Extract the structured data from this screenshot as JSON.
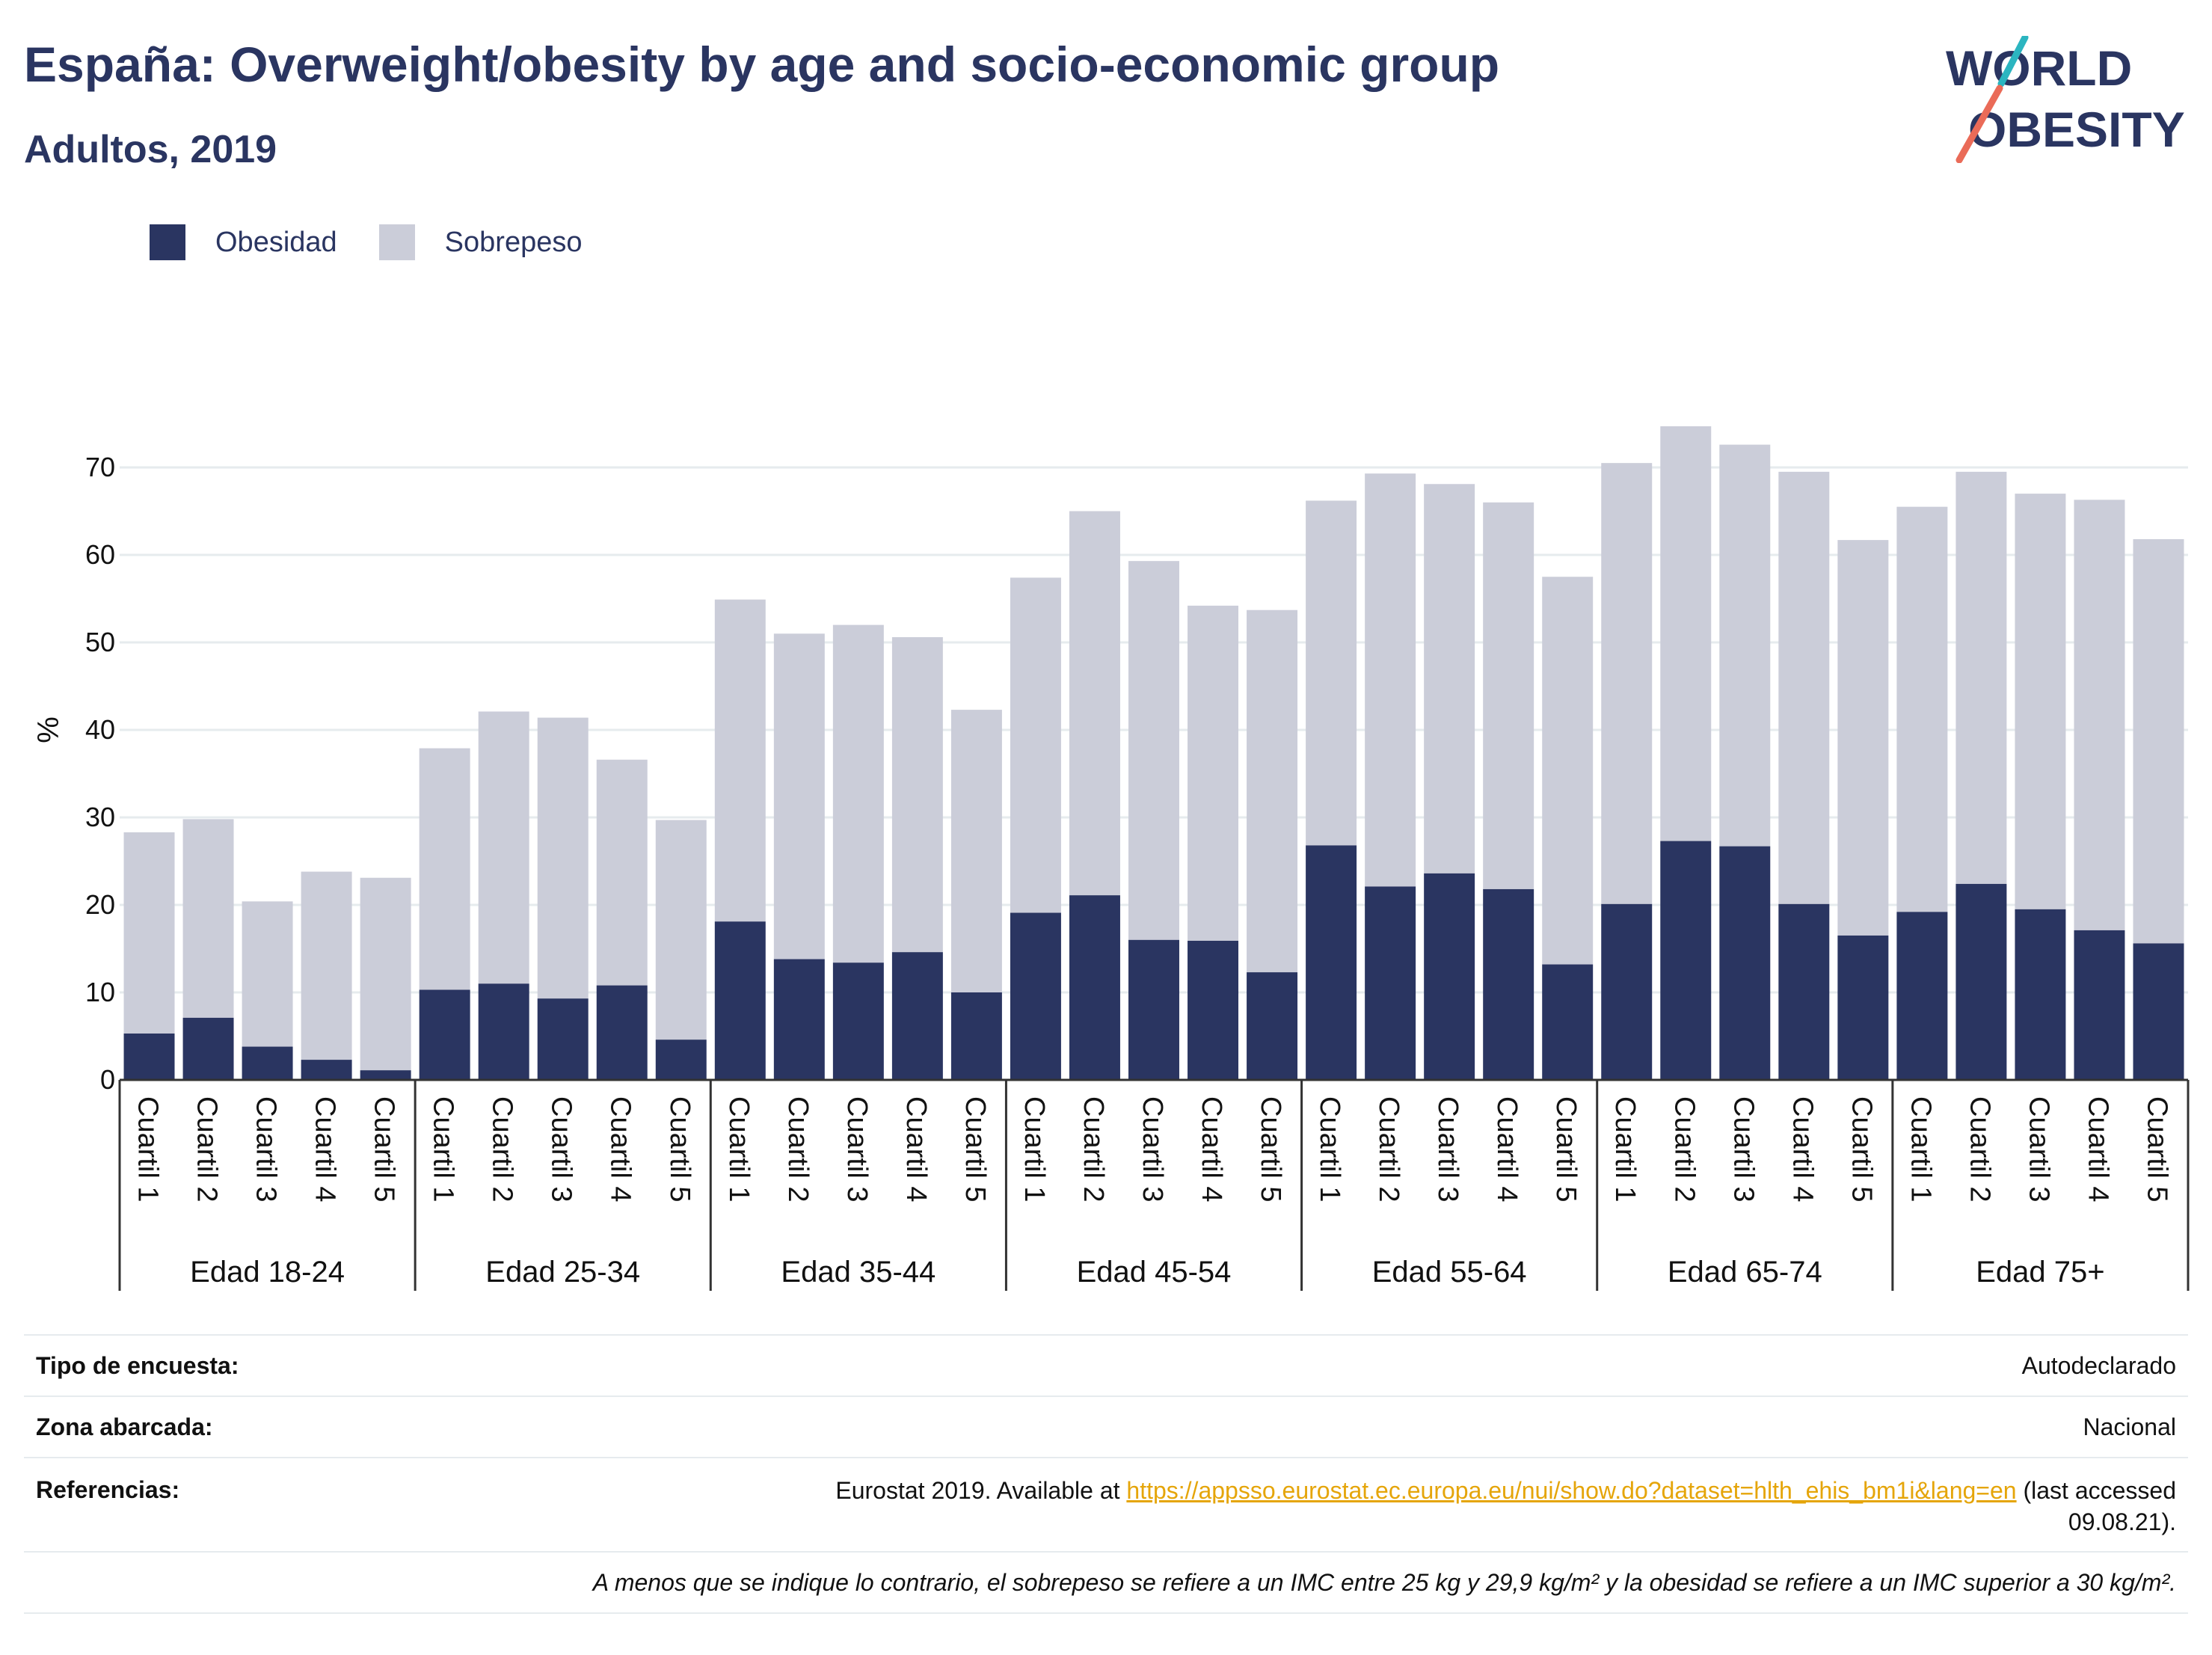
{
  "header": {
    "title": "España: Overweight/obesity by age and socio-economic group",
    "subtitle": "Adultos, 2019"
  },
  "logo": {
    "line1": "WORLD",
    "line2": "OBESITY"
  },
  "colors": {
    "obesidad": "#2a3561",
    "sobrepeso": "#cbcdd9",
    "text": "#2a3561",
    "link": "#e5a50a",
    "grid": "#e6ebee"
  },
  "chart_data": {
    "type": "bar",
    "stacked": true,
    "ylabel": "%",
    "ylim": [
      0,
      80
    ],
    "yticks": [
      0,
      10,
      20,
      30,
      40,
      50,
      60,
      70
    ],
    "grid": true,
    "legend_position": "top-left",
    "groups": [
      "Edad 18-24",
      "Edad 25-34",
      "Edad 35-44",
      "Edad 45-54",
      "Edad 55-64",
      "Edad 65-74",
      "Edad 75+"
    ],
    "categories": [
      "Cuartil 1",
      "Cuartil 2",
      "Cuartil 3",
      "Cuartil 4",
      "Cuartil 5"
    ],
    "series": [
      {
        "name": "Obesidad",
        "values": [
          [
            5.3,
            7.1,
            3.8,
            2.3,
            1.1
          ],
          [
            10.3,
            11.0,
            9.3,
            10.8,
            4.6
          ],
          [
            18.1,
            13.8,
            13.4,
            14.6,
            10.0
          ],
          [
            19.1,
            21.1,
            16.0,
            15.9,
            12.3
          ],
          [
            26.8,
            22.1,
            23.6,
            21.8,
            13.2
          ],
          [
            20.1,
            27.3,
            26.7,
            20.1,
            16.5
          ],
          [
            19.2,
            22.4,
            19.5,
            17.1,
            15.6
          ]
        ]
      },
      {
        "name": "Sobrepeso",
        "values": [
          [
            23.0,
            22.7,
            16.6,
            21.5,
            22.0
          ],
          [
            27.6,
            31.1,
            32.1,
            25.8,
            25.1
          ],
          [
            36.8,
            37.2,
            38.6,
            36.0,
            32.3
          ],
          [
            38.3,
            43.9,
            43.3,
            38.3,
            41.4
          ],
          [
            39.4,
            47.2,
            44.5,
            44.2,
            44.3
          ],
          [
            50.4,
            47.4,
            45.9,
            49.4,
            45.2
          ],
          [
            46.3,
            47.1,
            47.5,
            49.2,
            46.2
          ]
        ]
      }
    ]
  },
  "info": {
    "survey_label": "Tipo de encuesta:",
    "survey_value": "Autodeclarado",
    "area_label": "Zona abarcada:",
    "area_value": "Nacional",
    "refs_label": "Referencias:",
    "refs_prefix": "Eurostat 2019. Available at ",
    "refs_link": "https://appsso.eurostat.ec.europa.eu/nui/show.do?dataset=hlth_ehis_bm1i&lang=en",
    "refs_suffix": " (last accessed",
    "refs_date": "09.08.21).",
    "note": "A menos que se indique lo contrario, el sobrepeso se refiere a un IMC entre 25 kg y 29,9 kg/m² y la obesidad se refiere a un IMC superior a 30 kg/m²."
  }
}
